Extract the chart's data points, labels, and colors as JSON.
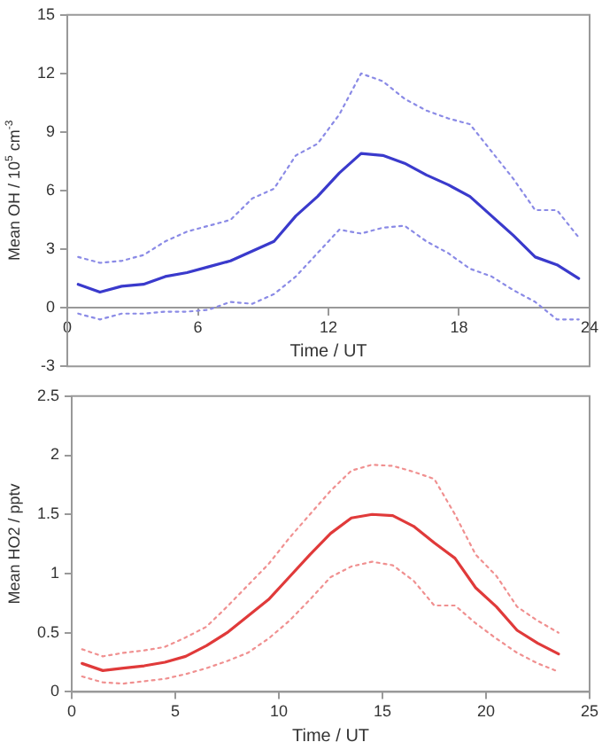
{
  "chart_data": [
    {
      "type": "line",
      "xlabel": "Time / UT",
      "ylabel": "Mean OH / 10$^{5}$ cm$^{-3}$",
      "x": [
        0.5,
        1.5,
        2.5,
        3.5,
        4.5,
        5.5,
        6.5,
        7.5,
        8.5,
        9.5,
        10.5,
        11.5,
        12.5,
        13.5,
        14.5,
        15.5,
        16.5,
        17.5,
        18.5,
        19.5,
        20.5,
        21.5,
        22.5,
        23.5
      ],
      "xlim": [
        0,
        24
      ],
      "xticks": [
        0,
        6,
        12,
        18,
        24
      ],
      "ylim": [
        -3,
        15
      ],
      "yticks": [
        -3,
        0,
        3,
        6,
        9,
        12,
        15
      ],
      "grid": false,
      "legend": false,
      "marker": "none",
      "series": [
        {
          "color": "#8a8ae6",
          "line_style": "dotted",
          "values": [
            2.6,
            2.3,
            2.4,
            2.7,
            3.4,
            3.9,
            4.2,
            4.5,
            5.6,
            6.1,
            7.8,
            8.4,
            9.9,
            12.0,
            11.6,
            10.7,
            10.1,
            9.7,
            9.4,
            8.0,
            6.6,
            5.0,
            5.0,
            3.6
          ]
        },
        {
          "color": "#3a3acc",
          "line_style": "solid",
          "values": [
            1.2,
            0.8,
            1.1,
            1.2,
            1.6,
            1.8,
            2.1,
            2.4,
            2.9,
            3.4,
            4.7,
            5.7,
            6.9,
            7.9,
            7.8,
            7.4,
            6.8,
            6.3,
            5.7,
            4.7,
            3.7,
            2.6,
            2.2,
            1.5
          ]
        },
        {
          "color": "#8a8ae6",
          "line_style": "dotted",
          "values": [
            -0.3,
            -0.6,
            -0.3,
            -0.3,
            -0.2,
            -0.2,
            -0.1,
            0.3,
            0.2,
            0.7,
            1.6,
            2.8,
            4.0,
            3.8,
            4.1,
            4.2,
            3.4,
            2.8,
            2.0,
            1.6,
            0.9,
            0.3,
            -0.6,
            -0.6
          ]
        }
      ]
    },
    {
      "type": "line",
      "xlabel": "Time / UT",
      "ylabel": "Mean HO2 / pptv",
      "x": [
        0.5,
        1.5,
        2.5,
        3.5,
        4.5,
        5.5,
        6.5,
        7.5,
        8.5,
        9.5,
        10.5,
        11.5,
        12.5,
        13.5,
        14.5,
        15.5,
        16.5,
        17.5,
        18.5,
        19.5,
        20.5,
        21.5,
        22.5,
        23.5
      ],
      "xlim": [
        0,
        25
      ],
      "xticks": [
        0,
        5,
        10,
        15,
        20,
        25
      ],
      "ylim": [
        0,
        2.5
      ],
      "yticks": [
        0,
        0.5,
        1,
        1.5,
        2,
        2.5
      ],
      "grid": false,
      "legend": false,
      "marker": "none",
      "series": [
        {
          "color": "#f09090",
          "line_style": "dotted",
          "values": [
            0.36,
            0.3,
            0.33,
            0.35,
            0.38,
            0.46,
            0.55,
            0.72,
            0.9,
            1.08,
            1.3,
            1.5,
            1.7,
            1.87,
            1.92,
            1.91,
            1.86,
            1.8,
            1.5,
            1.16,
            0.98,
            0.72,
            0.6,
            0.5
          ]
        },
        {
          "color": "#e03a3a",
          "line_style": "solid",
          "values": [
            0.24,
            0.18,
            0.2,
            0.22,
            0.25,
            0.3,
            0.39,
            0.5,
            0.64,
            0.78,
            0.97,
            1.16,
            1.34,
            1.47,
            1.5,
            1.49,
            1.4,
            1.26,
            1.13,
            0.88,
            0.72,
            0.52,
            0.41,
            0.32
          ]
        },
        {
          "color": "#f09090",
          "line_style": "dotted",
          "values": [
            0.13,
            0.08,
            0.07,
            0.09,
            0.11,
            0.15,
            0.2,
            0.26,
            0.33,
            0.45,
            0.6,
            0.78,
            0.97,
            1.06,
            1.1,
            1.07,
            0.94,
            0.73,
            0.73,
            0.58,
            0.45,
            0.33,
            0.24,
            0.17
          ]
        }
      ]
    }
  ]
}
